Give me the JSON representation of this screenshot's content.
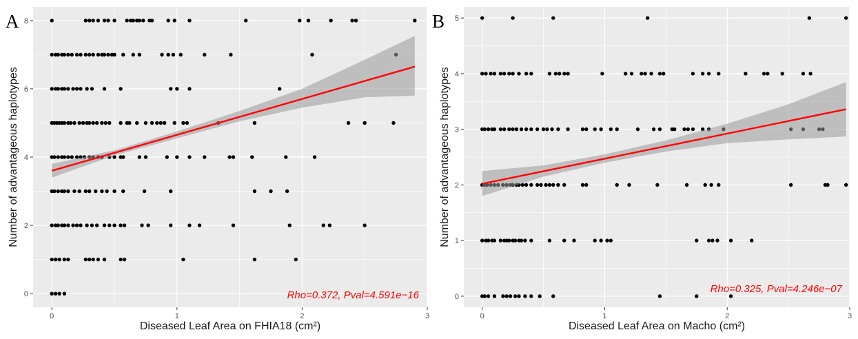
{
  "chart_data": [
    {
      "type": "scatter",
      "panel_label": "A",
      "xlabel": "Diseased Leaf Area on FHIA18 (cm²)",
      "ylabel": "Number of advantageous haplotypes",
      "xlim": [
        -0.15,
        3.0
      ],
      "ylim": [
        -0.4,
        8.4
      ],
      "xticks": [
        0,
        1,
        2,
        3
      ],
      "yticks": [
        0,
        2,
        4,
        6,
        8
      ],
      "annotation": "Rho=0.372, Pval=4.591e−16",
      "fit_line": {
        "x": [
          0,
          2.9
        ],
        "y": [
          3.6,
          6.65
        ],
        "color": "#ff0000"
      },
      "confidence_band": {
        "x": [
          0,
          0.5,
          1.0,
          1.5,
          2.0,
          2.5,
          2.9
        ],
        "lower": [
          3.4,
          4.05,
          4.55,
          5.05,
          5.45,
          5.75,
          5.8
        ],
        "upper": [
          3.8,
          4.2,
          4.75,
          5.35,
          6.0,
          6.85,
          7.55
        ]
      },
      "grid": true,
      "background": "#ebebeb",
      "points": [
        [
          0,
          8
        ],
        [
          0.27,
          8
        ],
        [
          0.3,
          8
        ],
        [
          0.33,
          8
        ],
        [
          0.37,
          8
        ],
        [
          0.42,
          8
        ],
        [
          0.45,
          8
        ],
        [
          0.5,
          8
        ],
        [
          0.6,
          8
        ],
        [
          0.63,
          8
        ],
        [
          0.65,
          8
        ],
        [
          0.68,
          8
        ],
        [
          0.7,
          8
        ],
        [
          0.73,
          8
        ],
        [
          0.78,
          8
        ],
        [
          0.8,
          8
        ],
        [
          0.93,
          8
        ],
        [
          0.98,
          8
        ],
        [
          1.1,
          8
        ],
        [
          1.55,
          8
        ],
        [
          1.98,
          8
        ],
        [
          2.05,
          8
        ],
        [
          2.23,
          8
        ],
        [
          2.4,
          8
        ],
        [
          2.43,
          8
        ],
        [
          2.9,
          8
        ],
        [
          0,
          7
        ],
        [
          0.03,
          7
        ],
        [
          0.05,
          7
        ],
        [
          0.08,
          7
        ],
        [
          0.1,
          7
        ],
        [
          0.13,
          7
        ],
        [
          0.16,
          7
        ],
        [
          0.2,
          7
        ],
        [
          0.23,
          7
        ],
        [
          0.27,
          7
        ],
        [
          0.3,
          7
        ],
        [
          0.33,
          7
        ],
        [
          0.37,
          7
        ],
        [
          0.4,
          7
        ],
        [
          0.42,
          7
        ],
        [
          0.45,
          7
        ],
        [
          0.48,
          7
        ],
        [
          0.5,
          7
        ],
        [
          0.57,
          7
        ],
        [
          0.65,
          7
        ],
        [
          0.7,
          7
        ],
        [
          0.88,
          7
        ],
        [
          0.93,
          7
        ],
        [
          0.97,
          7
        ],
        [
          1.03,
          7
        ],
        [
          1.22,
          7
        ],
        [
          1.43,
          7
        ],
        [
          2.08,
          7
        ],
        [
          2.75,
          7
        ],
        [
          0,
          6
        ],
        [
          0.03,
          6
        ],
        [
          0.05,
          6
        ],
        [
          0.08,
          6
        ],
        [
          0.1,
          6
        ],
        [
          0.13,
          6
        ],
        [
          0.17,
          6
        ],
        [
          0.2,
          6
        ],
        [
          0.23,
          6
        ],
        [
          0.28,
          6
        ],
        [
          0.32,
          6
        ],
        [
          0.42,
          6
        ],
        [
          0.55,
          6
        ],
        [
          0.95,
          6
        ],
        [
          1.0,
          6
        ],
        [
          1.1,
          6
        ],
        [
          1.82,
          6
        ],
        [
          0,
          5
        ],
        [
          0.02,
          5
        ],
        [
          0.04,
          5
        ],
        [
          0.06,
          5
        ],
        [
          0.08,
          5
        ],
        [
          0.1,
          5
        ],
        [
          0.13,
          5
        ],
        [
          0.15,
          5
        ],
        [
          0.18,
          5
        ],
        [
          0.22,
          5
        ],
        [
          0.25,
          5
        ],
        [
          0.28,
          5
        ],
        [
          0.3,
          5
        ],
        [
          0.33,
          5
        ],
        [
          0.36,
          5
        ],
        [
          0.4,
          5
        ],
        [
          0.43,
          5
        ],
        [
          0.46,
          5
        ],
        [
          0.55,
          5
        ],
        [
          0.6,
          5
        ],
        [
          0.62,
          5
        ],
        [
          0.68,
          5
        ],
        [
          0.75,
          5
        ],
        [
          0.8,
          5
        ],
        [
          0.84,
          5
        ],
        [
          0.87,
          5
        ],
        [
          0.9,
          5
        ],
        [
          0.98,
          5
        ],
        [
          1.05,
          5
        ],
        [
          1.08,
          5
        ],
        [
          1.33,
          5
        ],
        [
          1.62,
          5
        ],
        [
          2.37,
          5
        ],
        [
          2.5,
          5
        ],
        [
          2.73,
          5
        ],
        [
          0,
          4
        ],
        [
          0.02,
          4
        ],
        [
          0.05,
          4
        ],
        [
          0.08,
          4
        ],
        [
          0.1,
          4
        ],
        [
          0.13,
          4
        ],
        [
          0.16,
          4
        ],
        [
          0.2,
          4
        ],
        [
          0.23,
          4
        ],
        [
          0.26,
          4
        ],
        [
          0.3,
          4
        ],
        [
          0.33,
          4
        ],
        [
          0.37,
          4
        ],
        [
          0.4,
          4
        ],
        [
          0.46,
          4
        ],
        [
          0.5,
          4
        ],
        [
          0.55,
          4
        ],
        [
          0.57,
          4
        ],
        [
          0.7,
          4
        ],
        [
          0.75,
          4
        ],
        [
          0.92,
          4
        ],
        [
          1.0,
          4
        ],
        [
          1.1,
          4
        ],
        [
          1.22,
          4
        ],
        [
          1.42,
          4
        ],
        [
          1.45,
          4
        ],
        [
          1.6,
          4
        ],
        [
          1.87,
          4
        ],
        [
          2.1,
          4
        ],
        [
          0,
          3
        ],
        [
          0.02,
          3
        ],
        [
          0.05,
          3
        ],
        [
          0.08,
          3
        ],
        [
          0.1,
          3
        ],
        [
          0.13,
          3
        ],
        [
          0.18,
          3
        ],
        [
          0.22,
          3
        ],
        [
          0.27,
          3
        ],
        [
          0.3,
          3
        ],
        [
          0.35,
          3
        ],
        [
          0.4,
          3
        ],
        [
          0.44,
          3
        ],
        [
          0.5,
          3
        ],
        [
          0.57,
          3
        ],
        [
          0.74,
          3
        ],
        [
          0.95,
          3
        ],
        [
          1.62,
          3
        ],
        [
          1.75,
          3
        ],
        [
          1.88,
          3
        ],
        [
          0,
          2
        ],
        [
          0.03,
          2
        ],
        [
          0.05,
          2
        ],
        [
          0.08,
          2
        ],
        [
          0.1,
          2
        ],
        [
          0.13,
          2
        ],
        [
          0.17,
          2
        ],
        [
          0.2,
          2
        ],
        [
          0.23,
          2
        ],
        [
          0.28,
          2
        ],
        [
          0.32,
          2
        ],
        [
          0.36,
          2
        ],
        [
          0.42,
          2
        ],
        [
          0.46,
          2
        ],
        [
          0.5,
          2
        ],
        [
          0.55,
          2
        ],
        [
          0.58,
          2
        ],
        [
          0.72,
          2
        ],
        [
          0.77,
          2
        ],
        [
          0.95,
          2
        ],
        [
          1.1,
          2
        ],
        [
          1.18,
          2
        ],
        [
          1.45,
          2
        ],
        [
          1.9,
          2
        ],
        [
          2.17,
          2
        ],
        [
          2.22,
          2
        ],
        [
          2.5,
          2
        ],
        [
          0,
          1
        ],
        [
          0.03,
          1
        ],
        [
          0.06,
          1
        ],
        [
          0.1,
          1
        ],
        [
          0.13,
          1
        ],
        [
          0.27,
          1
        ],
        [
          0.3,
          1
        ],
        [
          0.33,
          1
        ],
        [
          0.37,
          1
        ],
        [
          0.42,
          1
        ],
        [
          0.55,
          1
        ],
        [
          0.58,
          1
        ],
        [
          1.05,
          1
        ],
        [
          1.62,
          1
        ],
        [
          1.95,
          1
        ],
        [
          0,
          0
        ],
        [
          0.03,
          0
        ],
        [
          0.06,
          0
        ],
        [
          0.1,
          0
        ]
      ]
    },
    {
      "type": "scatter",
      "panel_label": "B",
      "xlabel": "Diseased Leaf Area on Macho (cm²)",
      "ylabel": "Number of advantageous haplotypes",
      "xlim": [
        -0.15,
        3.0
      ],
      "ylim": [
        -0.2,
        5.2
      ],
      "xticks": [
        0,
        1,
        2,
        3
      ],
      "yticks": [
        0,
        1,
        2,
        3,
        4,
        5
      ],
      "annotation": "Rho=0.325, Pval=4.246e−07",
      "fit_line": {
        "x": [
          0,
          2.97
        ],
        "y": [
          2.02,
          3.36
        ],
        "color": "#ff0000"
      },
      "confidence_band": {
        "x": [
          0,
          0.5,
          1.0,
          1.5,
          2.0,
          2.5,
          2.97
        ],
        "lower": [
          1.8,
          2.15,
          2.4,
          2.6,
          2.75,
          2.82,
          2.87
        ],
        "upper": [
          2.25,
          2.35,
          2.55,
          2.8,
          3.1,
          3.45,
          3.85
        ]
      },
      "grid": true,
      "background": "#ebebeb",
      "points": [
        [
          0,
          5
        ],
        [
          0.25,
          5
        ],
        [
          0.58,
          5
        ],
        [
          1.35,
          5
        ],
        [
          2.67,
          5
        ],
        [
          2.97,
          5
        ],
        [
          0,
          4
        ],
        [
          0.03,
          4
        ],
        [
          0.07,
          4
        ],
        [
          0.1,
          4
        ],
        [
          0.15,
          4
        ],
        [
          0.18,
          4
        ],
        [
          0.22,
          4
        ],
        [
          0.25,
          4
        ],
        [
          0.3,
          4
        ],
        [
          0.36,
          4
        ],
        [
          0.4,
          4
        ],
        [
          0.55,
          4
        ],
        [
          0.6,
          4
        ],
        [
          0.63,
          4
        ],
        [
          0.67,
          4
        ],
        [
          0.7,
          4
        ],
        [
          0.98,
          4
        ],
        [
          1.17,
          4
        ],
        [
          1.22,
          4
        ],
        [
          1.3,
          4
        ],
        [
          1.33,
          4
        ],
        [
          1.38,
          4
        ],
        [
          1.45,
          4
        ],
        [
          1.48,
          4
        ],
        [
          1.72,
          4
        ],
        [
          1.8,
          4
        ],
        [
          1.85,
          4
        ],
        [
          1.93,
          4
        ],
        [
          2.15,
          4
        ],
        [
          2.3,
          4
        ],
        [
          2.33,
          4
        ],
        [
          2.45,
          4
        ],
        [
          2.62,
          4
        ],
        [
          2.68,
          4
        ],
        [
          0,
          3
        ],
        [
          0.02,
          3
        ],
        [
          0.05,
          3
        ],
        [
          0.08,
          3
        ],
        [
          0.1,
          3
        ],
        [
          0.15,
          3
        ],
        [
          0.18,
          3
        ],
        [
          0.22,
          3
        ],
        [
          0.25,
          3
        ],
        [
          0.28,
          3
        ],
        [
          0.32,
          3
        ],
        [
          0.36,
          3
        ],
        [
          0.4,
          3
        ],
        [
          0.45,
          3
        ],
        [
          0.5,
          3
        ],
        [
          0.53,
          3
        ],
        [
          0.57,
          3
        ],
        [
          0.62,
          3
        ],
        [
          0.7,
          3
        ],
        [
          0.82,
          3
        ],
        [
          0.85,
          3
        ],
        [
          0.92,
          3
        ],
        [
          0.97,
          3
        ],
        [
          1.05,
          3
        ],
        [
          1.1,
          3
        ],
        [
          1.27,
          3
        ],
        [
          1.4,
          3
        ],
        [
          1.45,
          3
        ],
        [
          1.55,
          3
        ],
        [
          1.57,
          3
        ],
        [
          1.65,
          3
        ],
        [
          1.68,
          3
        ],
        [
          1.72,
          3
        ],
        [
          1.8,
          3
        ],
        [
          1.85,
          3
        ],
        [
          1.97,
          3
        ],
        [
          2.52,
          3
        ],
        [
          2.62,
          3
        ],
        [
          2.75,
          3
        ],
        [
          2.78,
          3
        ],
        [
          0,
          2
        ],
        [
          0.02,
          2
        ],
        [
          0.04,
          2
        ],
        [
          0.07,
          2
        ],
        [
          0.1,
          2
        ],
        [
          0.13,
          2
        ],
        [
          0.17,
          2
        ],
        [
          0.2,
          2
        ],
        [
          0.23,
          2
        ],
        [
          0.25,
          2
        ],
        [
          0.28,
          2
        ],
        [
          0.3,
          2
        ],
        [
          0.33,
          2
        ],
        [
          0.36,
          2
        ],
        [
          0.4,
          2
        ],
        [
          0.45,
          2
        ],
        [
          0.48,
          2
        ],
        [
          0.52,
          2
        ],
        [
          0.55,
          2
        ],
        [
          0.58,
          2
        ],
        [
          0.62,
          2
        ],
        [
          0.67,
          2
        ],
        [
          0.82,
          2
        ],
        [
          0.85,
          2
        ],
        [
          1.1,
          2
        ],
        [
          1.2,
          2
        ],
        [
          1.43,
          2
        ],
        [
          1.67,
          2
        ],
        [
          1.82,
          2
        ],
        [
          1.87,
          2
        ],
        [
          1.93,
          2
        ],
        [
          2.52,
          2
        ],
        [
          2.8,
          2
        ],
        [
          2.82,
          2
        ],
        [
          2.97,
          2
        ],
        [
          0,
          1
        ],
        [
          0.03,
          1
        ],
        [
          0.05,
          1
        ],
        [
          0.08,
          1
        ],
        [
          0.1,
          1
        ],
        [
          0.15,
          1
        ],
        [
          0.18,
          1
        ],
        [
          0.2,
          1
        ],
        [
          0.22,
          1
        ],
        [
          0.25,
          1
        ],
        [
          0.27,
          1
        ],
        [
          0.3,
          1
        ],
        [
          0.32,
          1
        ],
        [
          0.35,
          1
        ],
        [
          0.4,
          1
        ],
        [
          0.55,
          1
        ],
        [
          0.67,
          1
        ],
        [
          0.75,
          1
        ],
        [
          0.92,
          1
        ],
        [
          0.97,
          1
        ],
        [
          1.02,
          1
        ],
        [
          1.05,
          1
        ],
        [
          1.75,
          1
        ],
        [
          1.85,
          1
        ],
        [
          1.88,
          1
        ],
        [
          1.92,
          1
        ],
        [
          2.03,
          1
        ],
        [
          2.2,
          1
        ],
        [
          0,
          0
        ],
        [
          0.02,
          0
        ],
        [
          0.05,
          0
        ],
        [
          0.1,
          0
        ],
        [
          0.17,
          0
        ],
        [
          0.2,
          0
        ],
        [
          0.23,
          0
        ],
        [
          0.27,
          0
        ],
        [
          0.3,
          0
        ],
        [
          0.35,
          0
        ],
        [
          0.4,
          0
        ],
        [
          0.47,
          0
        ],
        [
          0.58,
          0
        ],
        [
          1.45,
          0
        ],
        [
          1.75,
          0
        ],
        [
          2.03,
          0
        ]
      ]
    }
  ]
}
